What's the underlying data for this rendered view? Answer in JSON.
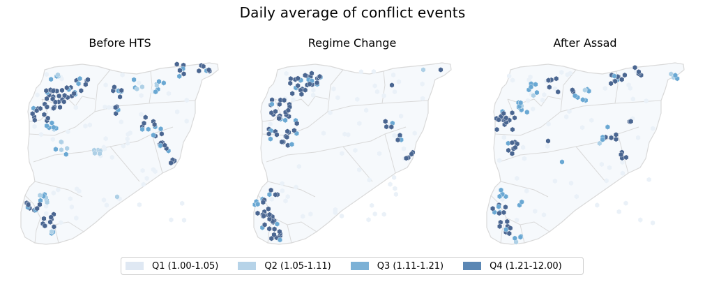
{
  "title": "Daily average of conflict events",
  "panels": [
    {
      "title": "Before HTS"
    },
    {
      "title": "Regime Change"
    },
    {
      "title": "After Assad"
    }
  ],
  "legend": [
    {
      "label": "Q1 (1.00-1.05)",
      "color": "#dfe8f3"
    },
    {
      "label": "Q2 (1.05-1.11)",
      "color": "#b6d3e8"
    },
    {
      "label": "Q3 (1.11-1.21)",
      "color": "#7cb1d6"
    },
    {
      "label": "Q4 (1.21-12.00)",
      "color": "#5b87b4"
    }
  ],
  "colors": {
    "q4_marker": "#4a6691",
    "q3_marker": "#6aa8d3",
    "q2_marker": "#aed0e6",
    "q1_marker": "#eaf1f8",
    "border": "#d9d9d9"
  }
}
